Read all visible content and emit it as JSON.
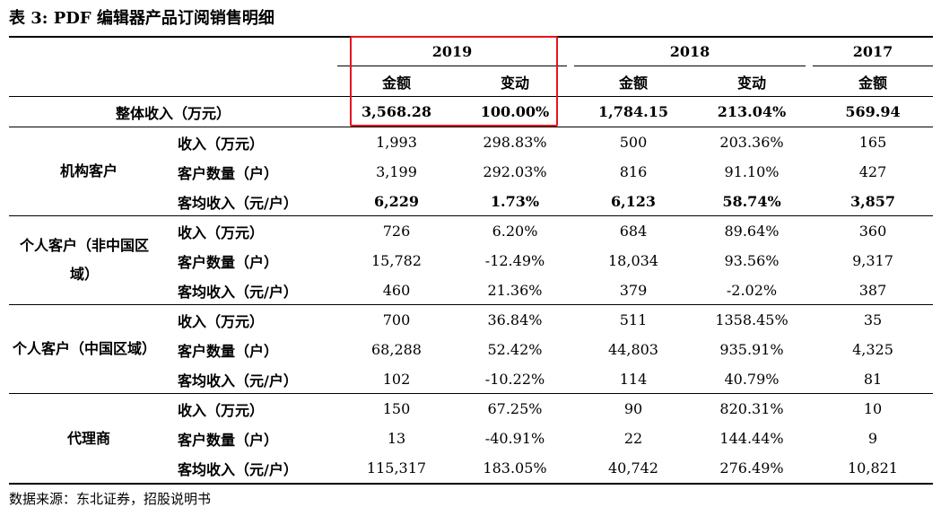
{
  "title": "表 3:  PDF 编辑器产品订阅销售明细",
  "headers": {
    "years": [
      "2019",
      "2018",
      "2017"
    ],
    "sub": [
      "金额",
      "变动",
      "金额",
      "变动",
      "金额"
    ]
  },
  "total": {
    "label": "整体收入（万元）",
    "values": [
      "3,568.28",
      "100.00%",
      "1,784.15",
      "213.04%",
      "569.94"
    ]
  },
  "groups": [
    {
      "name": "机构客户",
      "rows": [
        {
          "label": "收入（万元）",
          "values": [
            "1,993",
            "298.83%",
            "500",
            "203.36%",
            "165"
          ],
          "bold": false
        },
        {
          "label": "客户数量（户）",
          "values": [
            "3,199",
            "292.03%",
            "816",
            "91.10%",
            "427"
          ],
          "bold": false
        },
        {
          "label": "客均收入（元/户）",
          "values": [
            "6,229",
            "1.73%",
            "6,123",
            "58.74%",
            "3,857"
          ],
          "bold": true
        }
      ]
    },
    {
      "name": "个人客户（非中国区域）",
      "rows": [
        {
          "label": "收入（万元）",
          "values": [
            "726",
            "6.20%",
            "684",
            "89.64%",
            "360"
          ],
          "bold": false
        },
        {
          "label": "客户数量（户）",
          "values": [
            "15,782",
            "-12.49%",
            "18,034",
            "93.56%",
            "9,317"
          ],
          "bold": false
        },
        {
          "label": "客均收入（元/户）",
          "values": [
            "460",
            "21.36%",
            "379",
            "-2.02%",
            "387"
          ],
          "bold": false
        }
      ]
    },
    {
      "name": "个人客户（中国区域）",
      "rows": [
        {
          "label": "收入（万元）",
          "values": [
            "700",
            "36.84%",
            "511",
            "1358.45%",
            "35"
          ],
          "bold": false
        },
        {
          "label": "客户数量（户）",
          "values": [
            "68,288",
            "52.42%",
            "44,803",
            "935.91%",
            "4,325"
          ],
          "bold": false
        },
        {
          "label": "客均收入（元/户）",
          "values": [
            "102",
            "-10.22%",
            "114",
            "40.79%",
            "81"
          ],
          "bold": false
        }
      ]
    },
    {
      "name": "代理商",
      "rows": [
        {
          "label": "收入（万元）",
          "values": [
            "150",
            "67.25%",
            "90",
            "820.31%",
            "10"
          ],
          "bold": false
        },
        {
          "label": "客户数量（户）",
          "values": [
            "13",
            "-40.91%",
            "22",
            "144.44%",
            "9"
          ],
          "bold": false
        },
        {
          "label": "客均收入（元/户）",
          "values": [
            "115,317",
            "183.05%",
            "40,742",
            "276.49%",
            "10,821"
          ],
          "bold": false
        }
      ]
    }
  ],
  "source": "数据来源：东北证券，招股说明书",
  "colors": {
    "highlight": "#e8141c",
    "text": "#000000"
  }
}
